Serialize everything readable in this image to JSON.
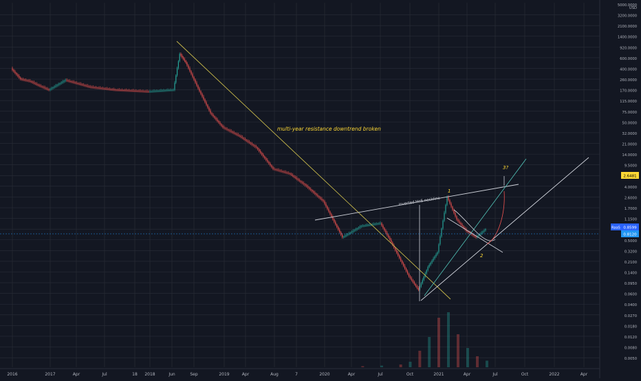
{
  "chart_data": {
    "type": "line",
    "scale": "log",
    "currency_label": "USD",
    "y_ticks": [
      "5000.0000",
      "3200.0000",
      "2100.0000",
      "1400.0000",
      "920.0000",
      "600.0000",
      "400.0000",
      "260.0000",
      "170.0000",
      "115.0000",
      "75.0000",
      "50.0000",
      "32.0000",
      "21.0000",
      "14.0000",
      "9.5000",
      "6.0000",
      "4.0000",
      "2.6000",
      "1.7000",
      "1.1500",
      "0.7500",
      "0.5000",
      "0.3200",
      "0.2100",
      "0.1400",
      "0.0950",
      "0.0600",
      "0.0400",
      "0.0270",
      "0.0180",
      "0.0120",
      "0.0080",
      "0.0050"
    ],
    "x_ticks": [
      "2016",
      "2017",
      "Apr",
      "Jul",
      "18",
      "2018",
      "Jun",
      "Sep",
      "2019",
      "Apr",
      "Aug",
      "7",
      "2020",
      "Apr",
      "Jul",
      "Oct",
      "2021",
      "Apr",
      "Jul",
      "Oct",
      "2022",
      "Apr"
    ],
    "price_tags": [
      {
        "text": "2.6481",
        "color": "#fdd835",
        "text_color": "#000000"
      },
      {
        "text": "0.8599",
        "color": "#2962ff",
        "text_color": "#ffffff",
        "prefix": "RaaS"
      },
      {
        "text": "0.8120",
        "color": "#2196f3",
        "text_color": "#ffffff"
      }
    ],
    "annotations": [
      "multi-year resistance downtrend broken",
      "inverted HnS neckline",
      "1",
      "2",
      "3?"
    ],
    "price_points": [
      [
        "2016-01",
        400
      ],
      [
        "2016-04",
        260
      ],
      [
        "2016-07",
        240
      ],
      [
        "2016-10",
        200
      ],
      [
        "2017-01",
        170
      ],
      [
        "2017-03",
        250
      ],
      [
        "2017-06",
        190
      ],
      [
        "2017-09",
        170
      ],
      [
        "2018-01",
        160
      ],
      [
        "2018-03",
        165
      ],
      [
        "2018-05",
        170
      ],
      [
        "2018-06",
        700
      ],
      [
        "2018-07",
        500
      ],
      [
        "2018-09",
        180
      ],
      [
        "2018-11",
        70
      ],
      [
        "2019-01",
        40
      ],
      [
        "2019-03",
        28
      ],
      [
        "2019-05",
        18
      ],
      [
        "2019-07",
        8
      ],
      [
        "2019-09",
        6.5
      ],
      [
        "2019-11",
        4
      ],
      [
        "2020-01",
        2.2
      ],
      [
        "2020-03",
        0.55
      ],
      [
        "2020-05",
        0.85
      ],
      [
        "2020-07",
        0.95
      ],
      [
        "2020-08",
        0.5
      ],
      [
        "2020-10",
        0.12
      ],
      [
        "2020-11",
        0.07
      ],
      [
        "2020-12",
        0.17
      ],
      [
        "2021-01",
        0.3
      ],
      [
        "2021-02",
        2.6
      ],
      [
        "2021-03",
        1.1
      ],
      [
        "2021-04",
        0.7
      ],
      [
        "2021-05",
        0.55
      ],
      [
        "2021-06",
        0.75
      ]
    ],
    "volume_points": [
      [
        "2020-05",
        0.02
      ],
      [
        "2020-07",
        0.03
      ],
      [
        "2020-09",
        0.05
      ],
      [
        "2020-10",
        0.1
      ],
      [
        "2020-11",
        0.3
      ],
      [
        "2020-12",
        0.55
      ],
      [
        "2021-01",
        0.9
      ],
      [
        "2021-02",
        1.0
      ],
      [
        "2021-03",
        0.6
      ],
      [
        "2021-04",
        0.35
      ],
      [
        "2021-05",
        0.2
      ],
      [
        "2021-06",
        0.12
      ]
    ]
  },
  "colors": {
    "background": "#131722",
    "grid": "#2a2e39",
    "up": "#26a69a",
    "down": "#ef5350",
    "axis_text": "#b2b5be",
    "annotation": "#fdd835",
    "trendline": "#c8b94a",
    "neckline": "#d1d4dc",
    "channel": "#4db6ac"
  }
}
